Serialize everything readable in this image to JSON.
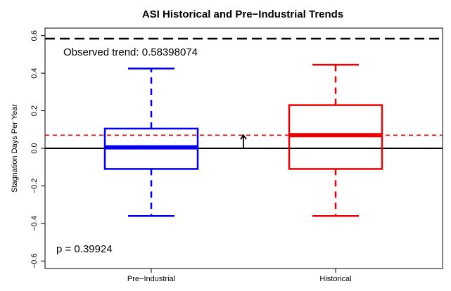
{
  "chart_data": {
    "type": "box",
    "title": "ASI Historical and Pre−Industrial Trends",
    "xlabel": "",
    "ylabel": "Stagnation Days Per Year",
    "ylim": [
      -0.64,
      0.64
    ],
    "yticks": [
      -0.6,
      -0.4,
      -0.2,
      0.0,
      0.2,
      0.4,
      0.6
    ],
    "ytick_labels": [
      "−0.6",
      "−0.4",
      "−0.2",
      "0.0",
      "0.2",
      "0.4",
      "0.6"
    ],
    "grid": false,
    "categories": [
      "Pre−Industrial",
      "Historical"
    ],
    "boxes": [
      {
        "category": "Pre−Industrial",
        "color": "#0000ee",
        "whisker_low": -0.36,
        "q1": -0.11,
        "median": 0.005,
        "q3": 0.105,
        "whisker_high": 0.425
      },
      {
        "category": "Historical",
        "color": "#ee0000",
        "whisker_low": -0.36,
        "q1": -0.11,
        "median": 0.07,
        "q3": 0.23,
        "whisker_high": 0.445
      }
    ],
    "reference_lines": [
      {
        "value": 0.584,
        "style": "dashed",
        "color": "#000000"
      },
      {
        "value": 0.07,
        "style": "dashed",
        "color": "#ee0000"
      },
      {
        "value": 0.0,
        "style": "solid",
        "color": "#000000"
      }
    ],
    "arrow": {
      "from": 0.0,
      "to": 0.07,
      "color": "#000000"
    },
    "annotations": {
      "observed": "Observed trend: 0.58398074",
      "pvalue": "p = 0.39924"
    }
  }
}
